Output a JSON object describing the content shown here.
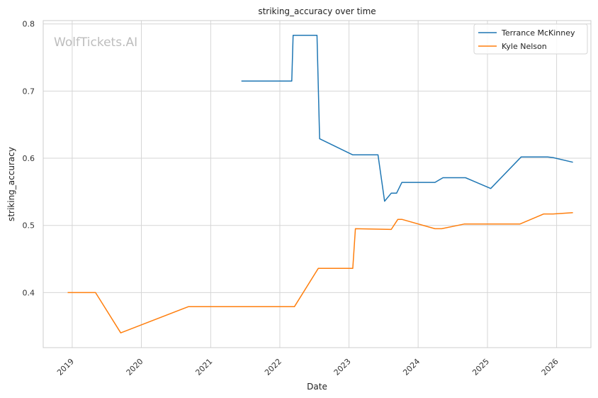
{
  "chart_data": {
    "type": "line",
    "title": "striking_accuracy over time",
    "xlabel": "Date",
    "ylabel": "striking_accuracy",
    "watermark": "WolfTickets.AI",
    "xlim": [
      "2018-08-01",
      "2026-07-01"
    ],
    "ylim": [
      0.318,
      0.805
    ],
    "x_ticks": [
      "2019",
      "2020",
      "2021",
      "2022",
      "2023",
      "2024",
      "2025",
      "2026"
    ],
    "y_ticks": [
      "0.4",
      "0.5",
      "0.6",
      "0.7",
      "0.8"
    ],
    "grid": true,
    "legend_position": "top-right",
    "series": [
      {
        "name": "Terrance McKinney",
        "color": "#1f77b4",
        "points": [
          [
            "2021-06-12",
            0.715
          ],
          [
            "2022-03-05",
            0.715
          ],
          [
            "2022-03-12",
            0.783
          ],
          [
            "2022-07-16",
            0.783
          ],
          [
            "2022-07-30",
            0.629
          ],
          [
            "2023-01-21",
            0.605
          ],
          [
            "2023-06-03",
            0.605
          ],
          [
            "2023-07-08",
            0.536
          ],
          [
            "2023-08-12",
            0.548
          ],
          [
            "2023-09-09",
            0.548
          ],
          [
            "2023-10-07",
            0.564
          ],
          [
            "2024-03-30",
            0.564
          ],
          [
            "2024-05-11",
            0.571
          ],
          [
            "2024-09-07",
            0.571
          ],
          [
            "2025-01-18",
            0.555
          ],
          [
            "2025-06-28",
            0.602
          ],
          [
            "2025-11-15",
            0.602
          ],
          [
            "2025-12-13",
            0.601
          ],
          [
            "2026-03-28",
            0.594
          ]
        ]
      },
      {
        "name": "Kyle Nelson",
        "color": "#ff7f0e",
        "points": [
          [
            "2018-12-08",
            0.4
          ],
          [
            "2019-05-04",
            0.4
          ],
          [
            "2019-09-14",
            0.34
          ],
          [
            "2020-09-05",
            0.379
          ],
          [
            "2022-03-19",
            0.379
          ],
          [
            "2022-07-23",
            0.436
          ],
          [
            "2023-01-21",
            0.436
          ],
          [
            "2023-02-04",
            0.495
          ],
          [
            "2023-08-12",
            0.494
          ],
          [
            "2023-09-16",
            0.509
          ],
          [
            "2023-10-07",
            0.509
          ],
          [
            "2024-03-30",
            0.495
          ],
          [
            "2024-05-04",
            0.495
          ],
          [
            "2024-08-31",
            0.502
          ],
          [
            "2025-06-21",
            0.502
          ],
          [
            "2025-10-25",
            0.517
          ],
          [
            "2025-12-13",
            0.517
          ],
          [
            "2026-03-28",
            0.519
          ]
        ]
      }
    ]
  }
}
